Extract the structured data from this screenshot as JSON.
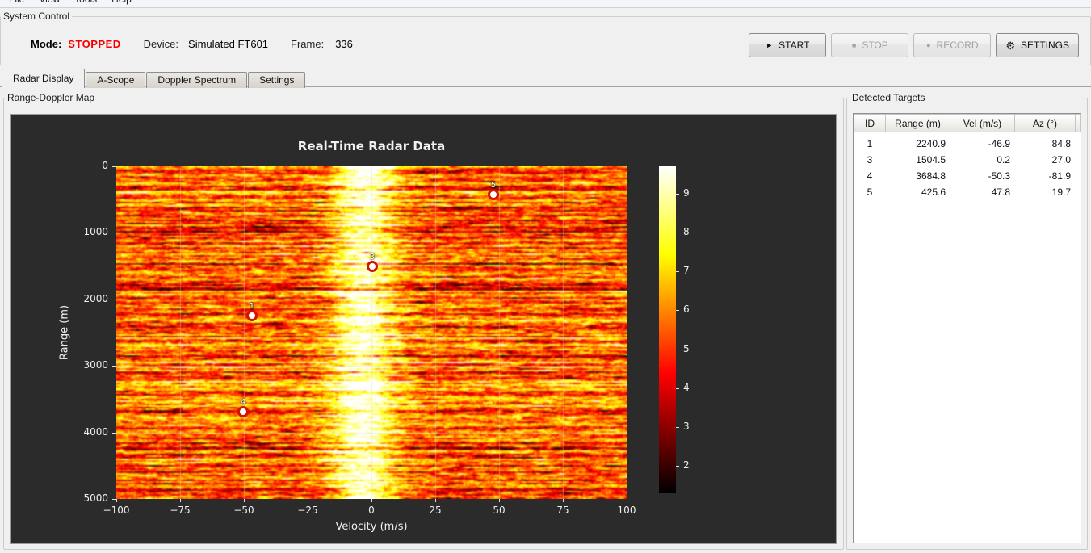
{
  "menu": {
    "items": [
      "File",
      "View",
      "Tools",
      "Help"
    ]
  },
  "system_control": {
    "title": "System Control",
    "mode_label": "Mode:",
    "mode_value": "STOPPED",
    "mode_color": "#f40000",
    "device_label": "Device:",
    "device_value": "Simulated FT601",
    "frame_label": "Frame:",
    "frame_value": "336",
    "buttons": [
      {
        "id": "start",
        "icon": "play-icon",
        "glyph": "►",
        "label": "START",
        "enabled": true
      },
      {
        "id": "stop",
        "icon": "stop-icon",
        "glyph": "■",
        "label": "STOP",
        "enabled": false
      },
      {
        "id": "record",
        "icon": "record-icon",
        "glyph": "●",
        "label": "RECORD",
        "enabled": false
      },
      {
        "id": "settings",
        "icon": "gear-icon",
        "glyph": "⚙",
        "label": "SETTINGS",
        "enabled": true
      }
    ]
  },
  "tabs": [
    {
      "label": "Radar Display",
      "active": true
    },
    {
      "label": "A-Scope",
      "active": false
    },
    {
      "label": "Doppler Spectrum",
      "active": false
    },
    {
      "label": "Settings",
      "active": false
    }
  ],
  "range_doppler": {
    "title": "Range-Doppler Map"
  },
  "detected_targets": {
    "title": "Detected Targets",
    "columns": [
      "ID",
      "Range (m)",
      "Vel (m/s)",
      "Az (°)"
    ],
    "rows": [
      [
        "1",
        "2240.9",
        "-46.9",
        "84.8"
      ],
      [
        "3",
        "1504.5",
        "0.2",
        "27.0"
      ],
      [
        "4",
        "3684.8",
        "-50.3",
        "-81.9"
      ],
      [
        "5",
        "425.6",
        "47.8",
        "19.7"
      ]
    ]
  },
  "chart_data": {
    "type": "heatmap",
    "title": "Real-Time Radar Data",
    "xlabel": "Velocity (m/s)",
    "ylabel": "Range (m)",
    "xlim": [
      -100,
      100
    ],
    "ylim": [
      0,
      5000
    ],
    "y_increases_downward": true,
    "xticks": [
      -100,
      -75,
      -50,
      -25,
      0,
      25,
      50,
      75,
      100
    ],
    "yticks": [
      0,
      1000,
      2000,
      3000,
      4000,
      5000
    ],
    "grid": true,
    "colormap": "hot",
    "clim": [
      1.3,
      9.7
    ],
    "colorbar_ticks": [
      2,
      3,
      4,
      5,
      6,
      7,
      8,
      9
    ],
    "background_noise_level_db": 5.5,
    "clutter_band": {
      "center_mps": -3,
      "sigma_mps": 9,
      "peak_boost": 4.1
    },
    "targets": [
      {
        "id": "1",
        "range_m": 2240.9,
        "vel_mps": -46.9
      },
      {
        "id": "3",
        "range_m": 1504.5,
        "vel_mps": 0.2
      },
      {
        "id": "4",
        "range_m": 3684.8,
        "vel_mps": -50.3
      },
      {
        "id": "5",
        "range_m": 425.6,
        "vel_mps": 47.8
      }
    ]
  }
}
